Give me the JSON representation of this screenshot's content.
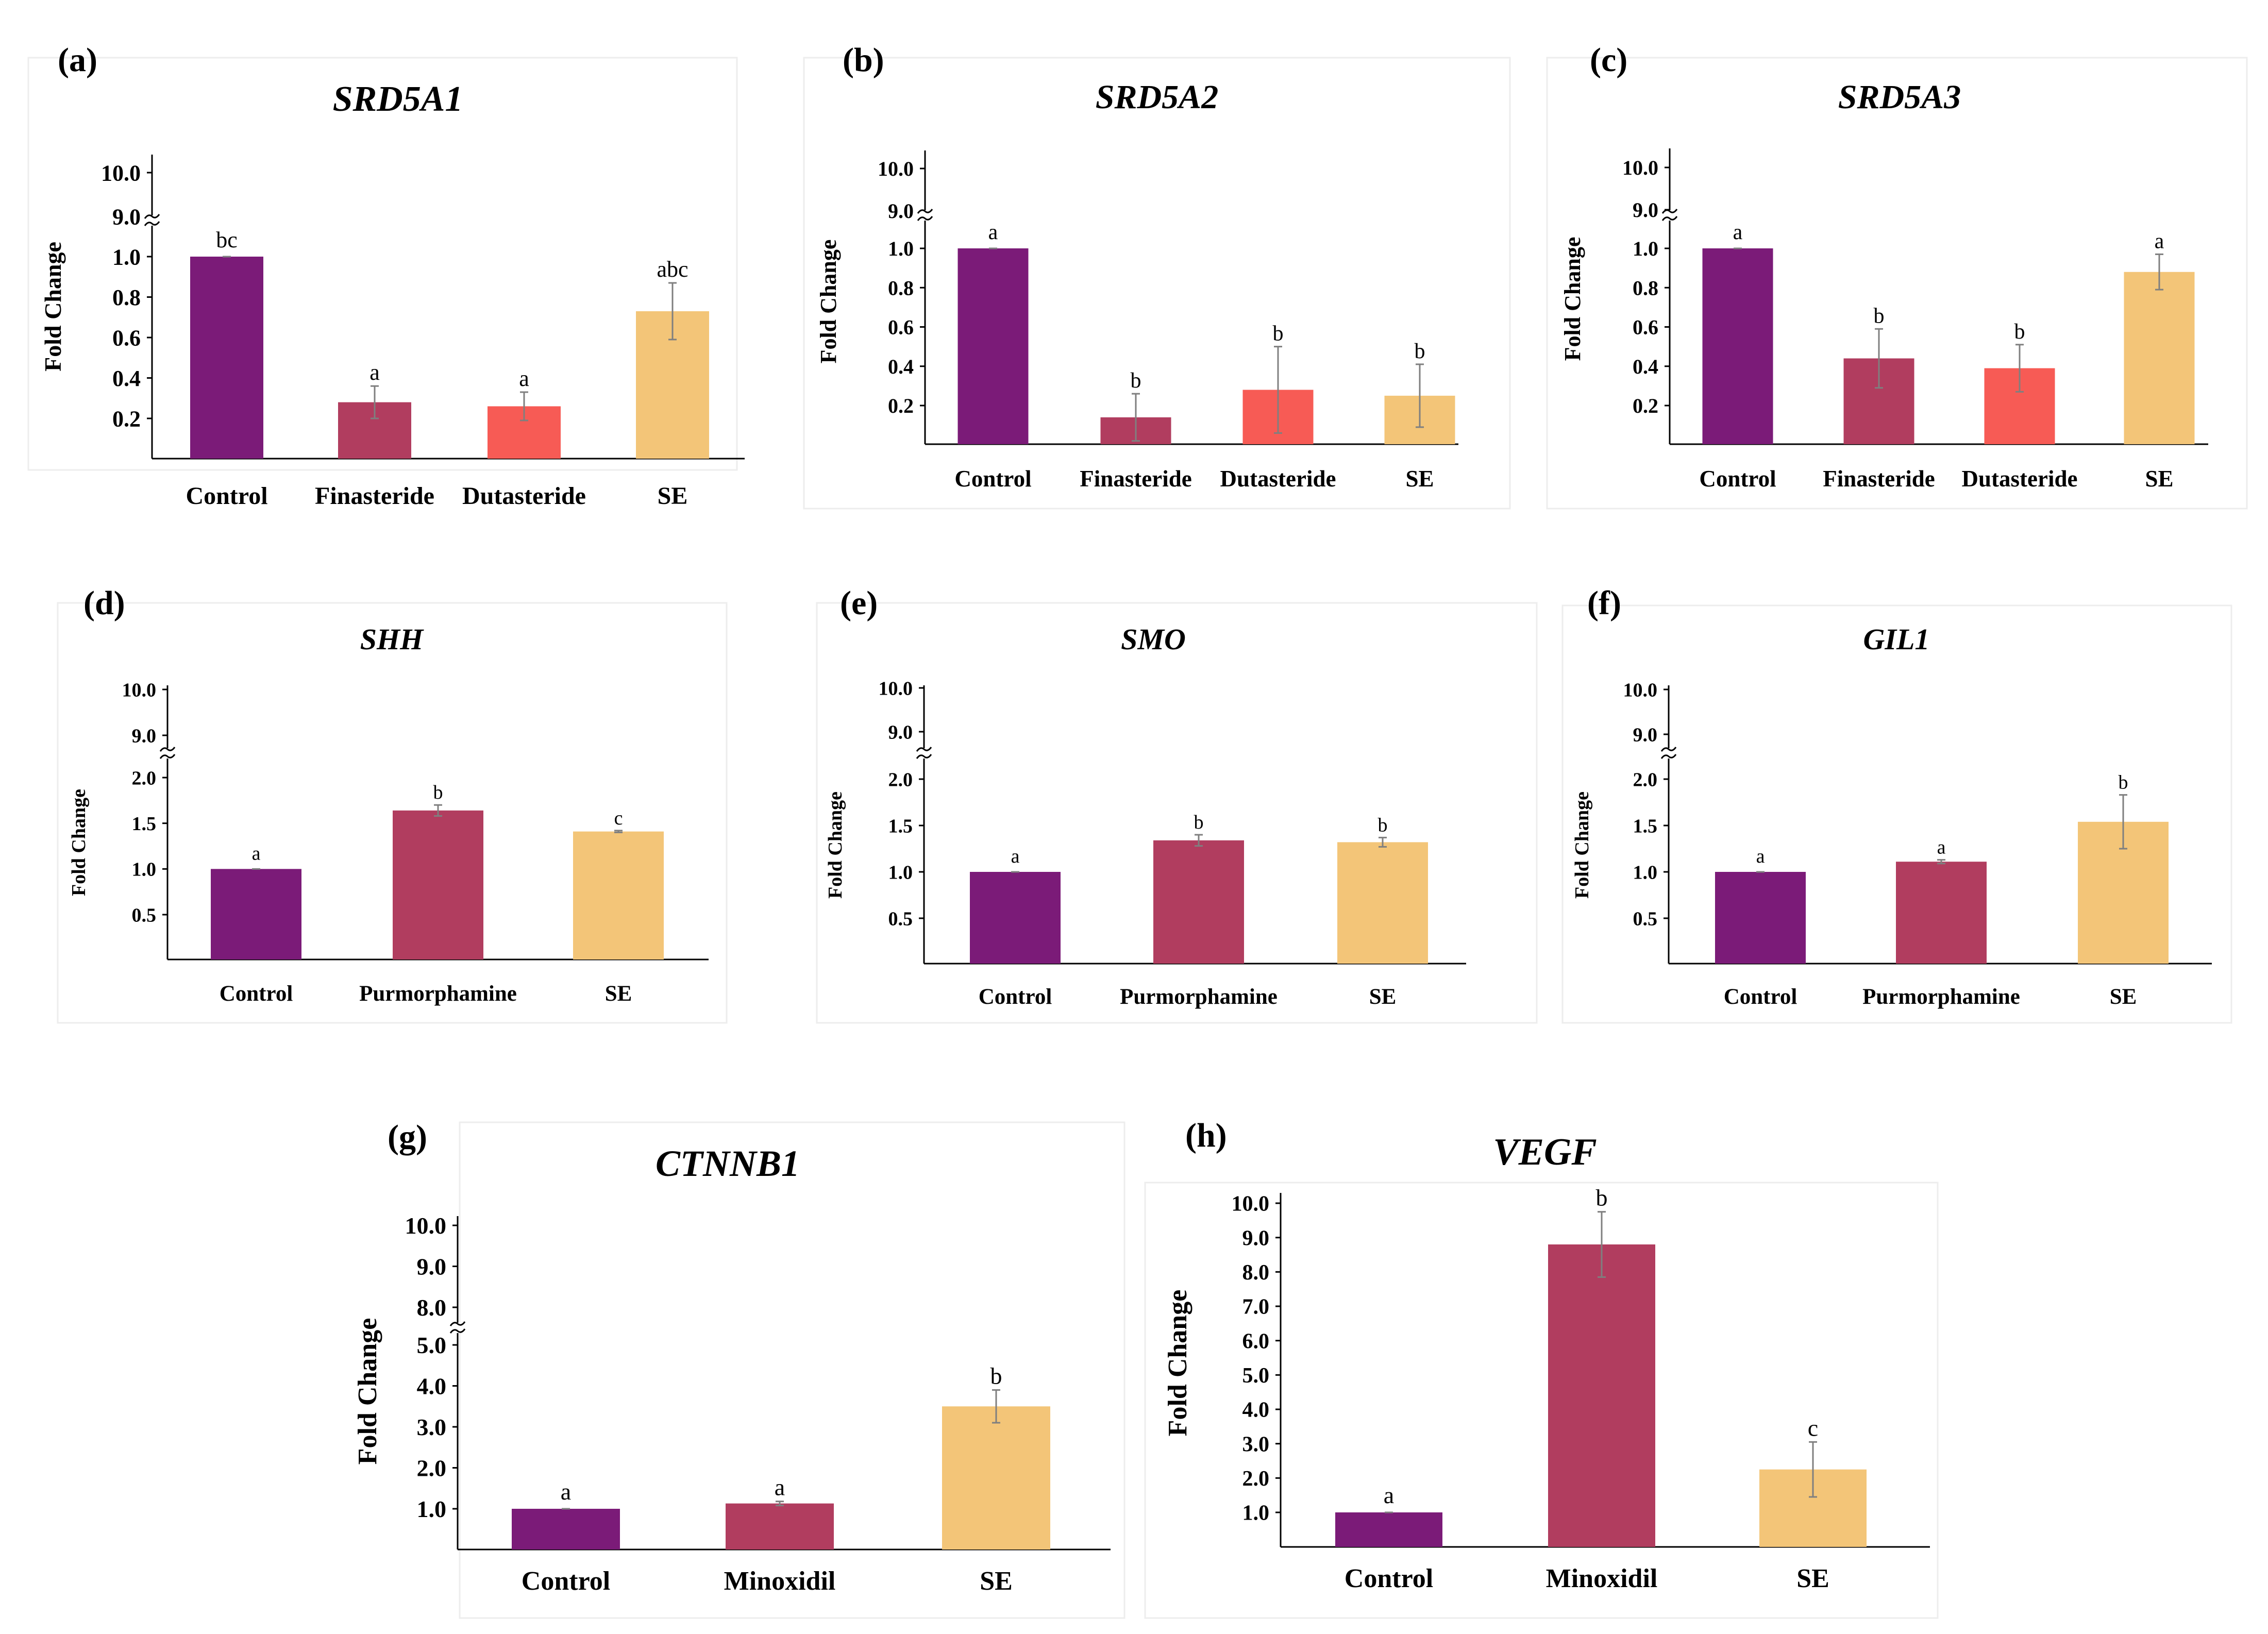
{
  "colors": {
    "Control": "#7b1b78",
    "Finasteride": "#b13d5f",
    "Dutasteride": "#f75b55",
    "SE": "#f3c578",
    "Purmorphamine": "#b13d5f",
    "Minoxidil": "#b13d5f"
  },
  "y_axis_label": "Fold Change",
  "chart_data": [
    {
      "panel": "(a)",
      "type": "bar",
      "title": "SRD5A1",
      "categories": [
        "Control",
        "Finasteride",
        "Dutasteride",
        "SE"
      ],
      "values": [
        1.0,
        0.28,
        0.26,
        0.73
      ],
      "errors": [
        0.0,
        0.08,
        0.07,
        0.14
      ],
      "significance": [
        "bc",
        "a",
        "a",
        "abc"
      ],
      "ylabel": "Fold Change",
      "lower_ticks": [
        "0.2",
        "0.4",
        "0.6",
        "0.8",
        "1.0"
      ],
      "upper_ticks": [
        "9.0",
        "10.0"
      ],
      "axis_break": true
    },
    {
      "panel": "(b)",
      "type": "bar",
      "title": "SRD5A2",
      "categories": [
        "Control",
        "Finasteride",
        "Dutasteride",
        "SE"
      ],
      "values": [
        1.0,
        0.14,
        0.28,
        0.25
      ],
      "errors": [
        0.0,
        0.12,
        0.22,
        0.16
      ],
      "significance": [
        "a",
        "b",
        "b",
        "b"
      ],
      "ylabel": "Fold Change",
      "lower_ticks": [
        "0.2",
        "0.4",
        "0.6",
        "0.8",
        "1.0"
      ],
      "upper_ticks": [
        "9.0",
        "10.0"
      ],
      "axis_break": true
    },
    {
      "panel": "(c)",
      "type": "bar",
      "title": "SRD5A3",
      "categories": [
        "Control",
        "Finasteride",
        "Dutasteride",
        "SE"
      ],
      "values": [
        1.0,
        0.44,
        0.39,
        0.88
      ],
      "errors": [
        0.0,
        0.15,
        0.12,
        0.09
      ],
      "significance": [
        "a",
        "b",
        "b",
        "a"
      ],
      "ylabel": "Fold Change",
      "lower_ticks": [
        "0.2",
        "0.4",
        "0.6",
        "0.8",
        "1.0"
      ],
      "upper_ticks": [
        "9.0",
        "10.0"
      ],
      "axis_break": true
    },
    {
      "panel": "(d)",
      "type": "bar",
      "title": "SHH",
      "categories": [
        "Control",
        "Purmorphamine",
        "SE"
      ],
      "values": [
        1.0,
        1.64,
        1.41
      ],
      "errors": [
        0.0,
        0.06,
        0.01
      ],
      "significance": [
        "a",
        "b",
        "c"
      ],
      "ylabel": "Fold Change",
      "lower_ticks": [
        "0.5",
        "1.0",
        "1.5",
        "2.0"
      ],
      "upper_ticks": [
        "9.0",
        "10.0"
      ],
      "axis_break": true
    },
    {
      "panel": "(e)",
      "type": "bar",
      "title": "SMO",
      "categories": [
        "Control",
        "Purmorphamine",
        "SE"
      ],
      "values": [
        1.0,
        1.34,
        1.32
      ],
      "errors": [
        0.0,
        0.06,
        0.05
      ],
      "significance": [
        "a",
        "b",
        "b"
      ],
      "ylabel": "Fold Change",
      "lower_ticks": [
        "0.5",
        "1.0",
        "1.5",
        "2.0"
      ],
      "upper_ticks": [
        "9.0",
        "10.0"
      ],
      "axis_break": true
    },
    {
      "panel": "(f)",
      "type": "bar",
      "title": "GIL1",
      "categories": [
        "Control",
        "Purmorphamine",
        "SE"
      ],
      "values": [
        1.0,
        1.11,
        1.54
      ],
      "errors": [
        0.0,
        0.02,
        0.29
      ],
      "significance": [
        "a",
        "a",
        "b"
      ],
      "ylabel": "Fold Change",
      "lower_ticks": [
        "0.5",
        "1.0",
        "1.5",
        "2.0"
      ],
      "upper_ticks": [
        "9.0",
        "10.0"
      ],
      "axis_break": true
    },
    {
      "panel": "(g)",
      "type": "bar",
      "title": "CTNNB1",
      "categories": [
        "Control",
        "Minoxidil",
        "SE"
      ],
      "values": [
        1.0,
        1.13,
        3.5
      ],
      "errors": [
        0.0,
        0.05,
        0.4
      ],
      "significance": [
        "a",
        "a",
        "b"
      ],
      "ylabel": "Fold Change",
      "lower_ticks": [
        "1.0",
        "2.0",
        "3.0",
        "4.0",
        "5.0"
      ],
      "upper_ticks": [
        "8.0",
        "9.0",
        "10.0"
      ],
      "axis_break": true
    },
    {
      "panel": "(h)",
      "type": "bar",
      "title": "VEGF",
      "categories": [
        "Control",
        "Minoxidil",
        "SE"
      ],
      "values": [
        1.0,
        8.8,
        2.25
      ],
      "errors": [
        0.0,
        0.95,
        0.8
      ],
      "significance": [
        "a",
        "b",
        "c"
      ],
      "ylabel": "Fold Change",
      "lower_ticks": [
        "1.0",
        "2.0",
        "3.0",
        "4.0",
        "5.0",
        "6.0",
        "7.0",
        "8.0",
        "9.0",
        "10.0"
      ],
      "upper_ticks": [],
      "axis_break": false
    }
  ]
}
